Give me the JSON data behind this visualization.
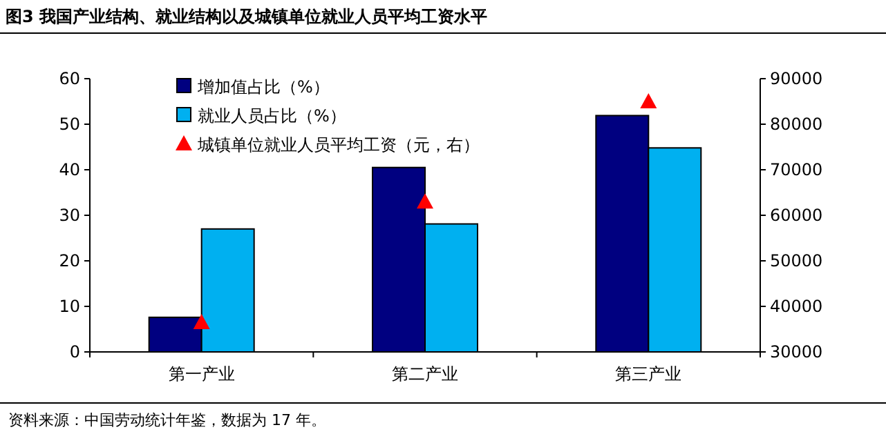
{
  "chart_data": {
    "type": "bar",
    "title": "图3  我国产业结构、就业结构以及城镇单位就业人员平均工资水平",
    "categories": [
      "第一产业",
      "第二产业",
      "第三产业"
    ],
    "series": [
      {
        "name": "增加值占比（%）",
        "color": "#000080",
        "values": [
          7.6,
          40.5,
          51.9
        ]
      },
      {
        "name": "就业人员占比（%）",
        "color": "#00b0f0",
        "values": [
          27,
          28.1,
          44.8
        ]
      },
      {
        "name": "城镇单位就业人员平均工资（元，右）",
        "type": "scatter",
        "axis": "y2",
        "marker": "triangle",
        "color": "#ff0000",
        "values": [
          36500,
          63000,
          85000
        ]
      }
    ],
    "ylim": [
      0,
      60
    ],
    "yticks": [
      0,
      10,
      20,
      30,
      40,
      50,
      60
    ],
    "y2lim": [
      30000,
      90000
    ],
    "y2ticks": [
      30000,
      40000,
      50000,
      60000,
      70000,
      80000,
      90000
    ],
    "legend": "top",
    "annotations": [
      "资料来源：中国劳动统计年鉴，数据为 17 年。"
    ]
  }
}
